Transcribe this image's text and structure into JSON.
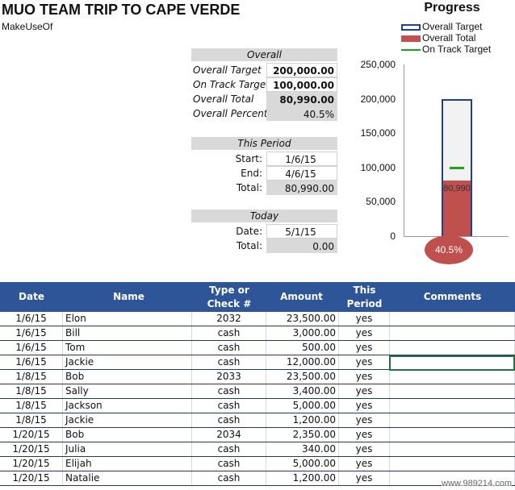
{
  "header": {
    "title": "MUO TEAM TRIP TO CAPE VERDE",
    "subtitle": "MakeUseOf"
  },
  "overall": {
    "heading": "Overall",
    "rows": [
      {
        "label": "Overall Target",
        "value": "200,000.00"
      },
      {
        "label": "On Track Target",
        "value": "100,000.00"
      },
      {
        "label": "Overall Total",
        "value": "80,990.00"
      },
      {
        "label": "Overall Percent",
        "value": "40.5%"
      }
    ]
  },
  "period": {
    "heading": "This Period",
    "rows": [
      {
        "label": "Start:",
        "value": "1/6/15"
      },
      {
        "label": "End:",
        "value": "4/6/15"
      },
      {
        "label": "Total:",
        "value": "80,990.00"
      }
    ]
  },
  "today": {
    "heading": "Today",
    "rows": [
      {
        "label": "Date:",
        "value": "5/1/15"
      },
      {
        "label": "Total:",
        "value": "0.00"
      }
    ]
  },
  "chart_data": {
    "type": "bar",
    "title": "Progress",
    "ylim": [
      0,
      250000
    ],
    "yticks": [
      "250,000",
      "200,000",
      "150,000",
      "100,000",
      "50,000",
      "0"
    ],
    "series": [
      {
        "name": "Overall Target",
        "value": 200000,
        "color": "#1f3f8f"
      },
      {
        "name": "Overall Total",
        "value": 80990,
        "color": "#c0504d",
        "label": "80,990"
      },
      {
        "name": "On Track Target",
        "value": 100000,
        "color": "#1aa51a"
      }
    ],
    "percent_label": "40.5%"
  },
  "table": {
    "headers": [
      "Date",
      "Name",
      "Type or Check #",
      "Amount",
      "This Period",
      "Comments"
    ],
    "rows": [
      [
        "1/6/15",
        "Elon",
        "2032",
        "23,500.00",
        "yes",
        ""
      ],
      [
        "1/6/15",
        "Bill",
        "cash",
        "3,000.00",
        "yes",
        ""
      ],
      [
        "1/6/15",
        "Tom",
        "cash",
        "500.00",
        "yes",
        ""
      ],
      [
        "1/6/15",
        "Jackie",
        "cash",
        "12,000.00",
        "yes",
        ""
      ],
      [
        "1/8/15",
        "Bob",
        "2033",
        "23,500.00",
        "yes",
        ""
      ],
      [
        "1/8/15",
        "Sally",
        "cash",
        "3,400.00",
        "yes",
        ""
      ],
      [
        "1/8/15",
        "Jackson",
        "cash",
        "5,000.00",
        "yes",
        ""
      ],
      [
        "1/8/15",
        "Jackie",
        "cash",
        "1,200.00",
        "yes",
        ""
      ],
      [
        "1/20/15",
        "Bob",
        "2034",
        "2,350.00",
        "yes",
        ""
      ],
      [
        "1/20/15",
        "Julia",
        "cash",
        "340.00",
        "yes",
        ""
      ],
      [
        "1/20/15",
        "Elijah",
        "cash",
        "5,000.00",
        "yes",
        ""
      ],
      [
        "1/20/15",
        "Natalie",
        "cash",
        "1,200.00",
        "yes",
        ""
      ]
    ]
  },
  "watermark": "www.989214.com"
}
